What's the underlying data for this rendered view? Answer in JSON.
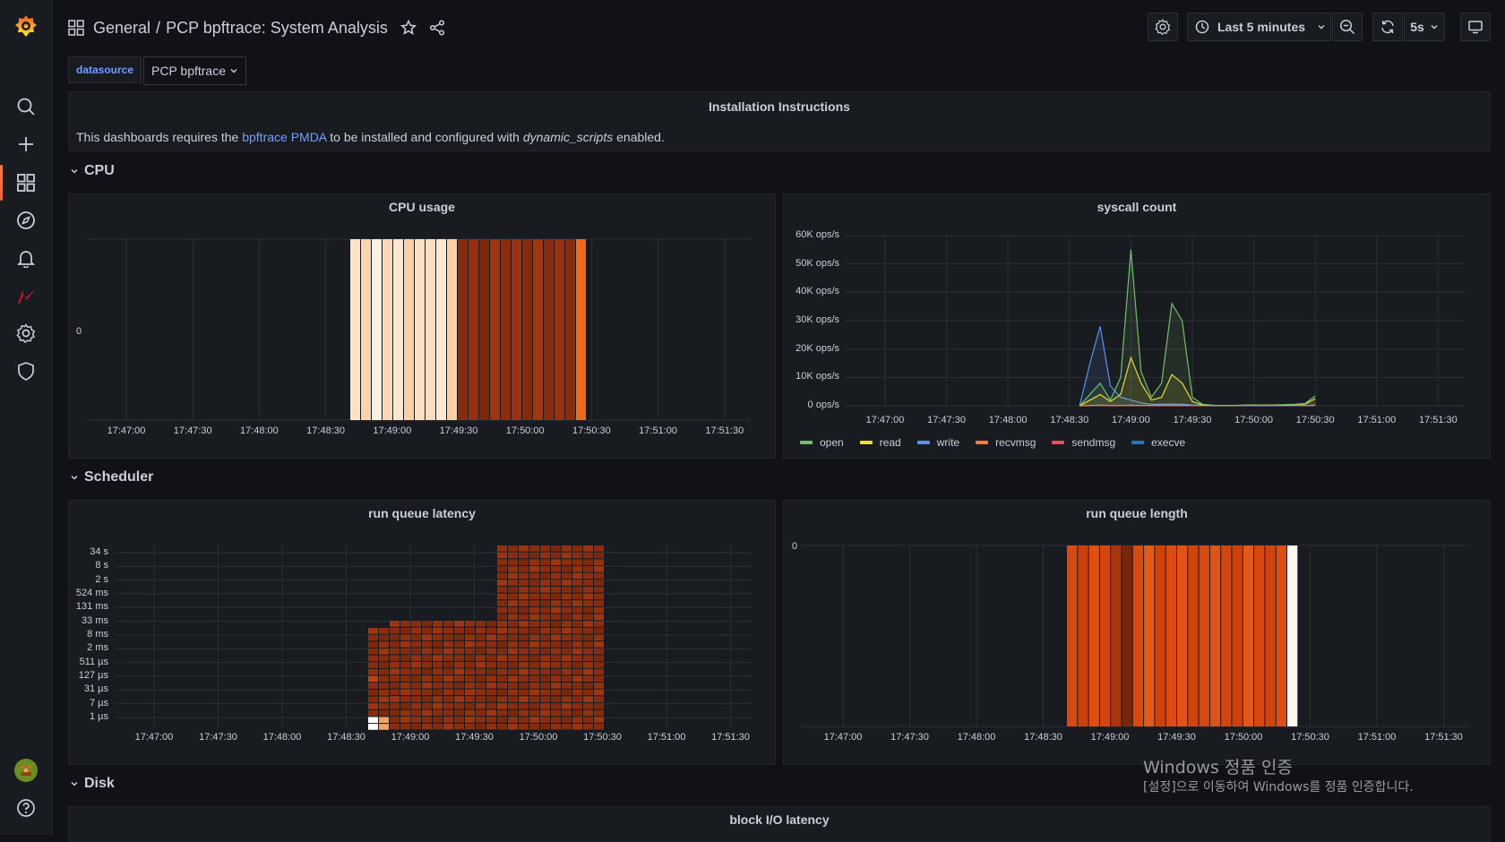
{
  "breadcrumb": {
    "folder": "General",
    "separator": "/",
    "title": "PCP bpftrace: System Analysis"
  },
  "toolbar": {
    "time_range": "Last 5 minutes",
    "refresh_interval": "5s"
  },
  "variables": {
    "label": "datasource",
    "value": "PCP bpftrace"
  },
  "instructions": {
    "title": "Installation Instructions",
    "text_before": "This dashboards requires the ",
    "link": "bpftrace PMDA",
    "text_middle": " to be installed and configured with ",
    "emphasis": "dynamic_scripts",
    "text_after": " enabled."
  },
  "rows": {
    "cpu": "CPU",
    "scheduler": "Scheduler",
    "disk": "Disk"
  },
  "panels": {
    "cpu_usage": "CPU usage",
    "syscall_count": "syscall count",
    "run_queue_latency": "run queue latency",
    "run_queue_length": "run queue length",
    "block_io_latency": "block I/O latency"
  },
  "time_ticks": [
    "17:47:00",
    "17:47:30",
    "17:48:00",
    "17:48:30",
    "17:49:00",
    "17:49:30",
    "17:50:00",
    "17:50:30",
    "17:51:00",
    "17:51:30"
  ],
  "chart_data": [
    {
      "type": "heatmap",
      "title": "CPU usage",
      "y_ticks": [
        "0"
      ],
      "x_ticks": [
        "17:47:00",
        "17:47:30",
        "17:48:00",
        "17:48:30",
        "17:49:00",
        "17:49:30",
        "17:50:00",
        "17:50:30",
        "17:51:00",
        "17:51:30"
      ],
      "colors": {
        "low": "#fde0c4",
        "high": "#8a2a0c",
        "peak": "#f06a1a"
      }
    },
    {
      "type": "area",
      "title": "syscall count",
      "y_ticks": [
        "0 ops/s",
        "10K ops/s",
        "20K ops/s",
        "30K ops/s",
        "40K ops/s",
        "50K ops/s",
        "60K ops/s"
      ],
      "ylim": [
        0,
        60000
      ],
      "x": [
        "17:48:35",
        "17:48:40",
        "17:48:45",
        "17:48:50",
        "17:48:55",
        "17:49:00",
        "17:49:05",
        "17:49:10",
        "17:49:15",
        "17:49:20",
        "17:49:25",
        "17:49:30",
        "17:49:35",
        "17:49:40",
        "17:49:45",
        "17:49:50",
        "17:49:55",
        "17:50:00",
        "17:50:05",
        "17:50:10",
        "17:50:15",
        "17:50:20",
        "17:50:25",
        "17:50:30"
      ],
      "series": [
        {
          "name": "open",
          "color": "#73bf69",
          "values": [
            0,
            4000,
            8000,
            2000,
            10000,
            55000,
            12000,
            3000,
            8000,
            36000,
            30000,
            3000,
            500,
            200,
            100,
            100,
            200,
            300,
            200,
            300,
            400,
            500,
            800,
            3500
          ]
        },
        {
          "name": "read",
          "color": "#fade2a",
          "values": [
            0,
            2000,
            4000,
            1500,
            4000,
            17000,
            8000,
            2000,
            3000,
            11000,
            8000,
            1500,
            300,
            100,
            100,
            100,
            200,
            200,
            200,
            300,
            300,
            400,
            600,
            2500
          ]
        },
        {
          "name": "write",
          "color": "#5794f2",
          "values": [
            0,
            15000,
            28000,
            7000,
            3000,
            2000,
            1000,
            500,
            500,
            600,
            500,
            300,
            200,
            100,
            100,
            100,
            100,
            100,
            100,
            100,
            100,
            100,
            100,
            200
          ]
        },
        {
          "name": "recvmsg",
          "color": "#ff7c3c",
          "values": [
            0,
            100,
            200,
            100,
            100,
            200,
            100,
            100,
            100,
            100,
            100,
            100,
            100,
            100,
            100,
            100,
            100,
            100,
            100,
            100,
            100,
            100,
            100,
            100
          ]
        },
        {
          "name": "sendmsg",
          "color": "#f2495c",
          "values": [
            0,
            50,
            100,
            50,
            50,
            100,
            50,
            50,
            50,
            50,
            50,
            50,
            50,
            50,
            50,
            50,
            50,
            50,
            50,
            50,
            50,
            50,
            50,
            50
          ]
        },
        {
          "name": "execve",
          "color": "#1f78c1",
          "values": [
            0,
            20,
            40,
            20,
            20,
            40,
            20,
            20,
            20,
            20,
            20,
            20,
            20,
            20,
            20,
            20,
            20,
            20,
            20,
            20,
            20,
            20,
            20,
            20
          ]
        }
      ],
      "legend": [
        "open",
        "read",
        "write",
        "recvmsg",
        "sendmsg",
        "execve"
      ]
    },
    {
      "type": "heatmap",
      "title": "run queue latency",
      "y_ticks": [
        "1 µs",
        "7 µs",
        "31 µs",
        "127 µs",
        "511 µs",
        "2 ms",
        "8 ms",
        "33 ms",
        "131 ms",
        "524 ms",
        "2 s",
        "8 s",
        "34 s"
      ],
      "x_ticks": [
        "17:47:00",
        "17:47:30",
        "17:48:00",
        "17:48:30",
        "17:49:00",
        "17:49:30",
        "17:50:00",
        "17:50:30",
        "17:51:00",
        "17:51:30"
      ]
    },
    {
      "type": "heatmap",
      "title": "run queue length",
      "y_ticks": [
        "0"
      ],
      "x_ticks": [
        "17:47:00",
        "17:47:30",
        "17:48:00",
        "17:48:30",
        "17:49:00",
        "17:49:30",
        "17:50:00",
        "17:50:30",
        "17:51:00",
        "17:51:30"
      ]
    }
  ],
  "watermark": {
    "title": "Windows 정품 인증",
    "subtitle": "[설정]으로 이동하여 Windows를 정품 인증합니다."
  }
}
